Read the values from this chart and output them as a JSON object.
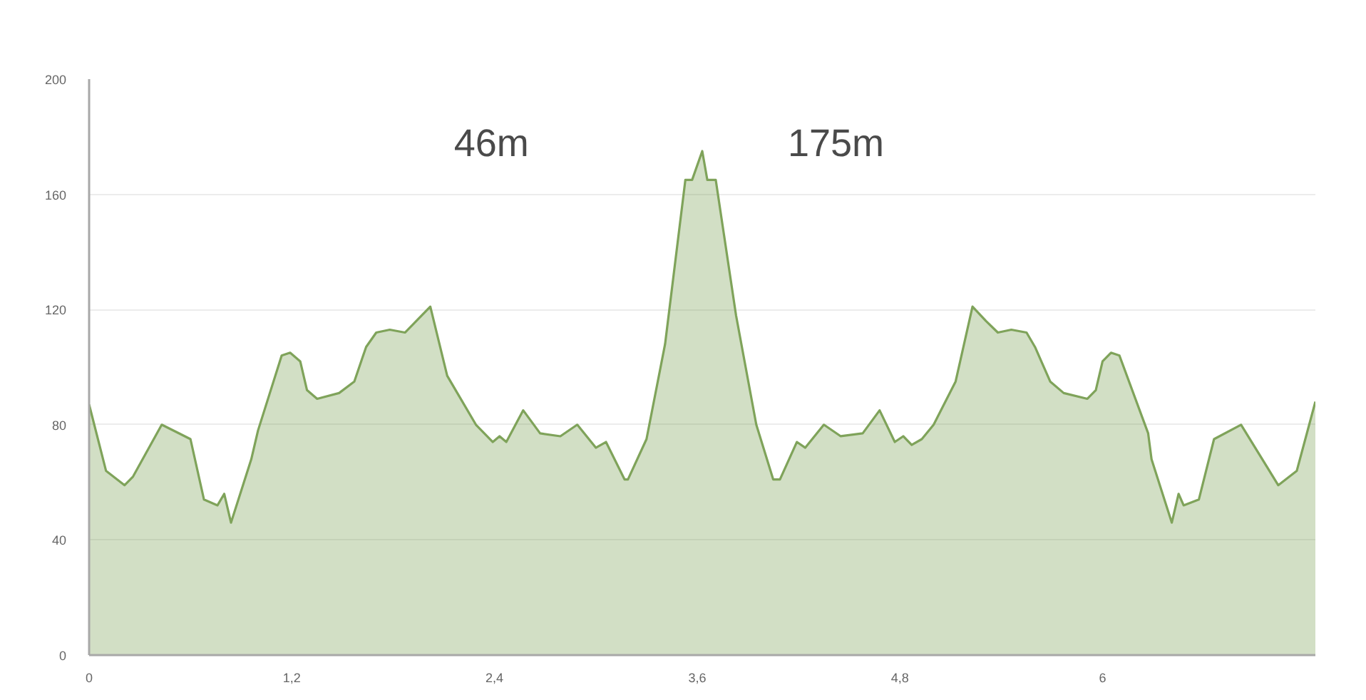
{
  "chart_data": {
    "type": "area",
    "x": [
      0,
      0.1,
      0.21,
      0.26,
      0.43,
      0.6,
      0.68,
      0.76,
      0.8,
      0.84,
      0.96,
      1.0,
      1.14,
      1.19,
      1.25,
      1.29,
      1.35,
      1.48,
      1.57,
      1.64,
      1.7,
      1.78,
      1.87,
      2.02,
      2.12,
      2.18,
      2.29,
      2.39,
      2.43,
      2.47,
      2.57,
      2.67,
      2.79,
      2.89,
      3.0,
      3.06,
      3.17,
      3.19,
      3.3,
      3.41,
      3.53,
      3.57,
      3.63,
      3.66,
      3.71,
      3.83,
      3.95,
      4.05,
      4.09,
      4.19,
      4.24,
      4.35,
      4.45,
      4.58,
      4.68,
      4.77,
      4.82,
      4.87,
      4.93,
      5.0,
      5.13,
      5.23,
      5.31,
      5.38,
      5.46,
      5.55,
      5.6,
      5.69,
      5.77,
      5.91,
      5.96,
      6.0,
      6.05,
      6.1,
      6.27,
      6.29,
      6.41,
      6.45,
      6.48,
      6.57,
      6.66,
      6.82,
      7.04,
      7.15,
      7.26
    ],
    "series": [
      {
        "color": "#7fa35a",
        "values": [
          87,
          64,
          59,
          62,
          80,
          75,
          54,
          52,
          56,
          46,
          68,
          78,
          104,
          105,
          102,
          92,
          89,
          91,
          95,
          107,
          112,
          113,
          112,
          121,
          97,
          91,
          80,
          74,
          76,
          74,
          85,
          77,
          76,
          80,
          72,
          74,
          61,
          61,
          75,
          108,
          165,
          165,
          175,
          165,
          165,
          118,
          80,
          61,
          61,
          74,
          72,
          80,
          76,
          77,
          85,
          74,
          76,
          73,
          75,
          80,
          95,
          121,
          116,
          112,
          113,
          112,
          107,
          95,
          91,
          89,
          92,
          102,
          105,
          104,
          77,
          68,
          46,
          56,
          52,
          54,
          75,
          80,
          59,
          64,
          88
        ]
      }
    ],
    "xlim": [
      0,
      7.26
    ],
    "ylim": [
      0,
      200
    ],
    "xticks": [
      0,
      {
        "value": 1.2,
        "label": "1,2"
      },
      {
        "value": 2.4,
        "label": "2,4"
      },
      {
        "value": 3.6,
        "label": "3,6"
      },
      {
        "value": 4.8,
        "label": "4,8"
      },
      6
    ],
    "yticks": [
      0,
      40,
      80,
      120,
      160,
      200
    ],
    "grid": "y",
    "annotations": [
      "46m",
      "175m"
    ]
  }
}
